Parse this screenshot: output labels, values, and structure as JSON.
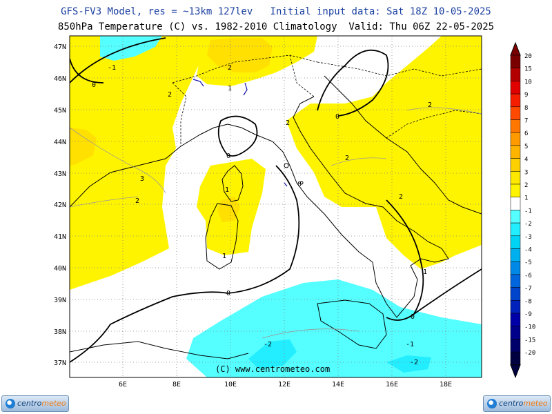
{
  "header": {
    "line1": "GFS-FV3 Model, res = ~13km 127lev   Initial input data: Sat 18Z 10-05-2025",
    "line2": "850hPa Temperature (C) vs. 1982-2010 Climatology  Valid: Thu 06Z 22-05-2025"
  },
  "map": {
    "lon_ticks": [
      "6E",
      "8E",
      "10E",
      "12E",
      "14E",
      "16E",
      "18E"
    ],
    "lat_ticks": [
      "47N",
      "46N",
      "45N",
      "44N",
      "43N",
      "42N",
      "41N",
      "40N",
      "39N",
      "38N",
      "37N"
    ],
    "credit": "(C) www.centrometeo.com",
    "contour_labels": [
      "-1",
      "2",
      "2",
      "1",
      "2",
      "2",
      "2",
      "3",
      "2",
      "1",
      "1",
      "2",
      "1",
      "-2",
      "-1",
      "-2",
      "0",
      "0",
      "0",
      "0",
      "0",
      "0"
    ]
  },
  "legend": {
    "levels": [
      "20",
      "15",
      "10",
      "9",
      "8",
      "7",
      "6",
      "5",
      "4",
      "3",
      "2",
      "1",
      "-1",
      "-2",
      "-3",
      "-4",
      "-5",
      "-6",
      "-7",
      "-8",
      "-9",
      "-10",
      "-15",
      "-20"
    ],
    "colors": [
      "#7a0000",
      "#b20000",
      "#e00000",
      "#f51e00",
      "#ff4a00",
      "#ff7700",
      "#ff9a00",
      "#ffb400",
      "#ffd000",
      "#ffe800",
      "#fff400",
      "#ffffff",
      "#55ffff",
      "#22eeff",
      "#00d4f5",
      "#00b0ee",
      "#0088e6",
      "#0066dd",
      "#0044cc",
      "#0022bb",
      "#0000a8",
      "#00008a",
      "#00006a",
      "#000040"
    ]
  },
  "logos": {
    "left": "centrometeo",
    "right": "centrometeo"
  }
}
